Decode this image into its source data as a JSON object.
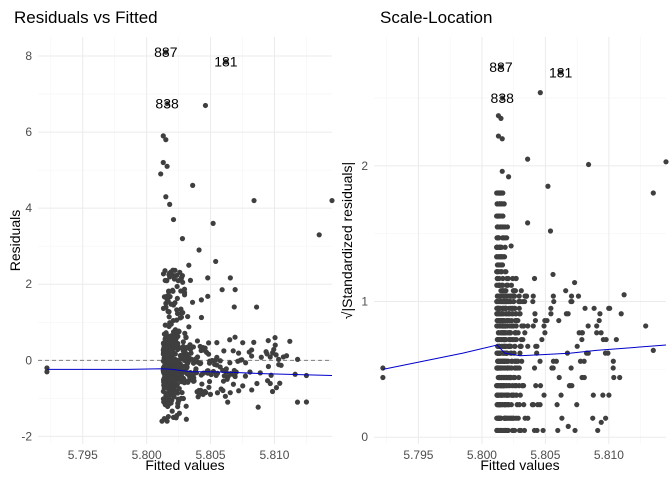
{
  "chart_data": [
    {
      "type": "scatter",
      "title": "Residuals vs Fitted",
      "xlabel": "Fitted values",
      "ylabel": "Residuals",
      "xlim": [
        5.7915,
        5.8145
      ],
      "ylim": [
        -2.2,
        8.5
      ],
      "xticks": [
        5.795,
        5.8,
        5.805,
        5.81
      ],
      "xtick_labels": [
        "5.795",
        "5.800",
        "5.805",
        "5.810"
      ],
      "yticks": [
        -2,
        0,
        2,
        4,
        6,
        8
      ],
      "ytick_labels": [
        "-2",
        "0",
        "2",
        "4",
        "6",
        "8"
      ],
      "reference_line": {
        "y": 0,
        "style": "dashed"
      },
      "colors": {
        "points": "#3f3f3f",
        "smooth": "#0000cc",
        "reference": "#7f7f7f"
      },
      "labeled_points": [
        {
          "label": "887",
          "x": 5.8015,
          "y": 8.1
        },
        {
          "label": "181",
          "x": 5.8062,
          "y": 7.85
        },
        {
          "label": "838",
          "x": 5.8016,
          "y": 6.75
        }
      ],
      "points": [
        [
          5.7922,
          -0.2
        ],
        [
          5.7922,
          -0.3
        ],
        [
          5.8145,
          4.2
        ],
        [
          5.8135,
          3.3
        ],
        [
          5.8084,
          4.2
        ],
        [
          5.8052,
          3.6
        ],
        [
          5.8036,
          4.6
        ],
        [
          5.8046,
          6.7
        ],
        [
          5.8013,
          5.9
        ],
        [
          5.8015,
          5.8
        ],
        [
          5.8013,
          5.2
        ],
        [
          5.8016,
          5.1
        ],
        [
          5.8011,
          4.9
        ],
        [
          5.8015,
          4.3
        ],
        [
          5.8018,
          4.1
        ],
        [
          5.8021,
          3.7
        ],
        [
          5.8028,
          3.2
        ],
        [
          5.8041,
          2.9
        ],
        [
          5.8033,
          2.5
        ],
        [
          5.8054,
          2.6
        ],
        [
          5.8086,
          1.4
        ],
        [
          5.8112,
          0.5
        ],
        [
          5.8125,
          -0.4
        ],
        [
          5.8118,
          -1.1
        ],
        [
          5.8072,
          -0.8
        ],
        [
          5.8016,
          -1.6
        ],
        [
          5.8021,
          -1.5
        ],
        [
          5.8012,
          -1.6
        ]
      ],
      "smooth": [
        [
          5.7922,
          -0.24
        ],
        [
          5.7985,
          -0.24
        ],
        [
          5.8012,
          -0.22
        ],
        [
          5.802,
          -0.24
        ],
        [
          5.8035,
          -0.3
        ],
        [
          5.805,
          -0.3
        ],
        [
          5.807,
          -0.32
        ],
        [
          5.809,
          -0.35
        ],
        [
          5.8145,
          -0.4
        ]
      ]
    },
    {
      "type": "scatter",
      "title": "Scale-Location",
      "xlabel": "Fitted values",
      "ylabel": "√|Standardized residuals|",
      "xlim": [
        5.7915,
        5.8145
      ],
      "ylim": [
        -0.05,
        2.95
      ],
      "xticks": [
        5.795,
        5.8,
        5.805,
        5.81
      ],
      "xtick_labels": [
        "5.795",
        "5.800",
        "5.805",
        "5.810"
      ],
      "yticks": [
        0,
        1,
        2
      ],
      "ytick_labels": [
        "0",
        "1",
        "2"
      ],
      "colors": {
        "points": "#3f3f3f",
        "smooth": "#0000cc"
      },
      "labeled_points": [
        {
          "label": "887",
          "x": 5.8015,
          "y": 2.73
        },
        {
          "label": "181",
          "x": 5.8062,
          "y": 2.69
        },
        {
          "label": "838",
          "x": 5.8016,
          "y": 2.5
        }
      ],
      "points": [
        [
          5.7922,
          0.51
        ],
        [
          5.7922,
          0.44
        ],
        [
          5.8145,
          2.03
        ],
        [
          5.8135,
          1.8
        ],
        [
          5.8084,
          2.01
        ],
        [
          5.8052,
          1.85
        ],
        [
          5.8036,
          2.05
        ],
        [
          5.8046,
          2.54
        ],
        [
          5.8013,
          2.37
        ],
        [
          5.8015,
          2.35
        ],
        [
          5.8013,
          2.22
        ],
        [
          5.8016,
          2.2
        ],
        [
          5.8021,
          1.92
        ],
        [
          5.8016,
          1.96
        ],
        [
          5.8036,
          1.58
        ],
        [
          5.8054,
          1.52
        ],
        [
          5.8023,
          1.41
        ],
        [
          5.8056,
          1.2
        ],
        [
          5.8066,
          1.08
        ],
        [
          5.8073,
          1.14
        ],
        [
          5.8112,
          1.05
        ],
        [
          5.8129,
          0.82
        ],
        [
          5.8135,
          0.64
        ],
        [
          5.8094,
          0.11
        ],
        [
          5.8068,
          0.08
        ]
      ],
      "smooth": [
        [
          5.7922,
          0.5
        ],
        [
          5.7985,
          0.62
        ],
        [
          5.8012,
          0.68
        ],
        [
          5.8018,
          0.62
        ],
        [
          5.803,
          0.6
        ],
        [
          5.805,
          0.61
        ],
        [
          5.807,
          0.62
        ],
        [
          5.809,
          0.64
        ],
        [
          5.8145,
          0.68
        ]
      ]
    }
  ]
}
